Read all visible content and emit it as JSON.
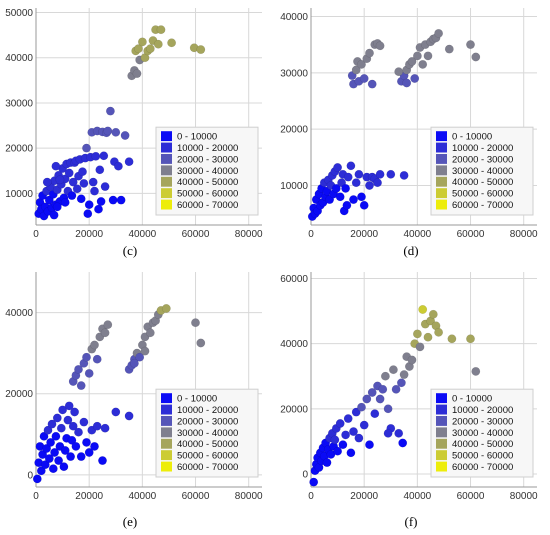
{
  "legend": {
    "entries": [
      {
        "label": "0 - 10000",
        "color": "#0a0af5"
      },
      {
        "label": "10000 - 20000",
        "color": "#2d2dd6"
      },
      {
        "label": "20000 - 30000",
        "color": "#5555b8"
      },
      {
        "label": "30000 - 40000",
        "color": "#7f7f8e"
      },
      {
        "label": "40000 - 50000",
        "color": "#a5a55c"
      },
      {
        "label": "50000 - 60000",
        "color": "#cccc33"
      },
      {
        "label": "60000 - 70000",
        "color": "#eded0a"
      }
    ]
  },
  "chart_data": [
    {
      "type": "scatter",
      "caption": "(c)",
      "xlim": [
        0,
        85000
      ],
      "ylim": [
        3000,
        51000
      ],
      "xticks": [
        0,
        20000,
        40000,
        60000,
        80000
      ],
      "yticks": [
        10000,
        20000,
        30000,
        40000,
        50000
      ],
      "grid": true,
      "legend_position": "bottom-right",
      "points": [
        [
          1000,
          5500
        ],
        [
          1500,
          8000
        ],
        [
          2000,
          6500
        ],
        [
          2500,
          9500
        ],
        [
          3000,
          5000
        ],
        [
          3500,
          7000
        ],
        [
          4000,
          10500
        ],
        [
          4500,
          6000
        ],
        [
          5000,
          8500
        ],
        [
          5500,
          11500
        ],
        [
          6000,
          6800
        ],
        [
          6500,
          9800
        ],
        [
          7000,
          12800
        ],
        [
          7500,
          7500
        ],
        [
          8000,
          10800
        ],
        [
          8500,
          14000
        ],
        [
          9000,
          8200
        ],
        [
          9500,
          12000
        ],
        [
          10000,
          15500
        ],
        [
          10500,
          9000
        ],
        [
          11000,
          13200
        ],
        [
          11500,
          16500
        ],
        [
          12000,
          10500
        ],
        [
          12500,
          14500
        ],
        [
          13000,
          16800
        ],
        [
          13500,
          9500
        ],
        [
          14000,
          12500
        ],
        [
          14500,
          16800
        ],
        [
          15000,
          17200
        ],
        [
          15500,
          11000
        ],
        [
          16000,
          13800
        ],
        [
          16500,
          17500
        ],
        [
          17000,
          8800
        ],
        [
          17500,
          14800
        ],
        [
          18000,
          12200
        ],
        [
          18500,
          17800
        ],
        [
          19000,
          20000
        ],
        [
          19500,
          5500
        ],
        [
          20000,
          7500
        ],
        [
          20500,
          18000
        ],
        [
          21000,
          23500
        ],
        [
          21500,
          12500
        ],
        [
          22000,
          10500
        ],
        [
          22500,
          18200
        ],
        [
          23000,
          23800
        ],
        [
          23500,
          6500
        ],
        [
          24000,
          15200
        ],
        [
          24500,
          8200
        ],
        [
          25000,
          23600
        ],
        [
          25500,
          18300
        ],
        [
          26000,
          11500
        ],
        [
          26500,
          23400
        ],
        [
          27000,
          23800
        ],
        [
          28000,
          28200
        ],
        [
          29000,
          8500
        ],
        [
          29500,
          17000
        ],
        [
          30000,
          23500
        ],
        [
          31000,
          16000
        ],
        [
          32000,
          8500
        ],
        [
          33500,
          22800
        ],
        [
          35000,
          17000
        ],
        [
          36000,
          36000
        ],
        [
          37000,
          37200
        ],
        [
          37500,
          41500
        ],
        [
          38000,
          36500
        ],
        [
          38500,
          42000
        ],
        [
          39000,
          39500
        ],
        [
          40000,
          43500
        ],
        [
          41000,
          40000
        ],
        [
          42000,
          41500
        ],
        [
          43000,
          42000
        ],
        [
          44000,
          43800
        ],
        [
          45000,
          46200
        ],
        [
          46000,
          43000
        ],
        [
          47000,
          46200
        ],
        [
          51000,
          43300
        ],
        [
          59500,
          42200
        ],
        [
          62000,
          41800
        ],
        [
          8000,
          7000
        ],
        [
          9000,
          13000
        ],
        [
          11000,
          8000
        ],
        [
          7500,
          16000
        ],
        [
          4200,
          12500
        ],
        [
          6800,
          5200
        ]
      ]
    },
    {
      "type": "scatter",
      "caption": "(d)",
      "xlim": [
        0,
        85000
      ],
      "ylim": [
        3000,
        41500
      ],
      "xticks": [
        0,
        20000,
        40000,
        60000,
        80000
      ],
      "yticks": [
        10000,
        20000,
        30000,
        40000
      ],
      "grid": true,
      "legend_position": "bottom-right",
      "points": [
        [
          500,
          4500
        ],
        [
          1000,
          6000
        ],
        [
          1500,
          5000
        ],
        [
          2000,
          7500
        ],
        [
          2500,
          5500
        ],
        [
          3000,
          8500
        ],
        [
          3500,
          6500
        ],
        [
          4000,
          9500
        ],
        [
          4500,
          7000
        ],
        [
          5000,
          10500
        ],
        [
          5500,
          8000
        ],
        [
          6000,
          9000
        ],
        [
          6500,
          11000
        ],
        [
          7000,
          7500
        ],
        [
          7500,
          10000
        ],
        [
          8000,
          11800
        ],
        [
          8500,
          8500
        ],
        [
          9000,
          12500
        ],
        [
          9500,
          9500
        ],
        [
          10000,
          13200
        ],
        [
          11000,
          8000
        ],
        [
          11500,
          10500
        ],
        [
          12000,
          12000
        ],
        [
          12500,
          5500
        ],
        [
          13000,
          9500
        ],
        [
          13500,
          6500
        ],
        [
          14000,
          11500
        ],
        [
          15000,
          13500
        ],
        [
          16000,
          7500
        ],
        [
          17000,
          10500
        ],
        [
          18000,
          12000
        ],
        [
          19000,
          8000
        ],
        [
          20000,
          6500
        ],
        [
          21000,
          11500
        ],
        [
          22000,
          10000
        ],
        [
          23000,
          11500
        ],
        [
          24000,
          11200
        ],
        [
          25000,
          10500
        ],
        [
          26000,
          12000
        ],
        [
          30000,
          12000
        ],
        [
          35000,
          11800
        ],
        [
          15500,
          29500
        ],
        [
          16000,
          28000
        ],
        [
          17000,
          30500
        ],
        [
          17500,
          32000
        ],
        [
          18000,
          28500
        ],
        [
          19000,
          31500
        ],
        [
          20000,
          29000
        ],
        [
          21000,
          32500
        ],
        [
          22000,
          33500
        ],
        [
          23000,
          28000
        ],
        [
          24000,
          35000
        ],
        [
          25000,
          35200
        ],
        [
          26000,
          34800
        ],
        [
          34000,
          28500
        ],
        [
          35000,
          29500
        ],
        [
          36000,
          30500
        ],
        [
          37000,
          31500
        ],
        [
          38000,
          32000
        ],
        [
          39000,
          29000
        ],
        [
          40000,
          33000
        ],
        [
          41000,
          34500
        ],
        [
          42000,
          31500
        ],
        [
          43000,
          35000
        ],
        [
          44000,
          33000
        ],
        [
          45000,
          35500
        ],
        [
          46000,
          36000
        ],
        [
          47000,
          36200
        ],
        [
          48000,
          37000
        ],
        [
          52000,
          34200
        ],
        [
          60000,
          35000
        ],
        [
          62000,
          32800
        ],
        [
          36000,
          28200
        ],
        [
          33000,
          30200
        ]
      ]
    },
    {
      "type": "scatter",
      "caption": "(e)",
      "xlim": [
        0,
        85000
      ],
      "ylim": [
        -3000,
        50000
      ],
      "xticks": [
        0,
        20000,
        40000,
        60000,
        80000
      ],
      "yticks": [
        0,
        20000,
        40000
      ],
      "grid": true,
      "legend_position": "bottom-right",
      "points": [
        [
          500,
          -1000
        ],
        [
          1000,
          3000
        ],
        [
          1500,
          7000
        ],
        [
          2000,
          1000
        ],
        [
          2500,
          5000
        ],
        [
          3000,
          9500
        ],
        [
          3500,
          2500
        ],
        [
          4000,
          6500
        ],
        [
          4500,
          11000
        ],
        [
          5000,
          4000
        ],
        [
          5500,
          8000
        ],
        [
          6000,
          12500
        ],
        [
          6500,
          1500
        ],
        [
          7000,
          5500
        ],
        [
          7500,
          9500
        ],
        [
          8000,
          14000
        ],
        [
          8500,
          3500
        ],
        [
          9000,
          7000
        ],
        [
          9500,
          11500
        ],
        [
          10000,
          16000
        ],
        [
          10500,
          2000
        ],
        [
          11000,
          6000
        ],
        [
          11500,
          9000
        ],
        [
          12000,
          13500
        ],
        [
          12500,
          17000
        ],
        [
          13000,
          4500
        ],
        [
          13500,
          8500
        ],
        [
          14000,
          12000
        ],
        [
          14500,
          15500
        ],
        [
          15000,
          7000
        ],
        [
          16000,
          10500
        ],
        [
          17000,
          4500
        ],
        [
          18000,
          13000
        ],
        [
          19000,
          8000
        ],
        [
          20000,
          5500
        ],
        [
          21000,
          11000
        ],
        [
          22000,
          7000
        ],
        [
          23000,
          12000
        ],
        [
          25000,
          3500
        ],
        [
          26000,
          11500
        ],
        [
          30000,
          15500
        ],
        [
          35000,
          14500
        ],
        [
          14000,
          23000
        ],
        [
          15000,
          24500
        ],
        [
          16000,
          26000
        ],
        [
          17000,
          22000
        ],
        [
          18000,
          27500
        ],
        [
          19000,
          29000
        ],
        [
          20000,
          25000
        ],
        [
          21000,
          31000
        ],
        [
          22000,
          32000
        ],
        [
          23000,
          28500
        ],
        [
          24000,
          34000
        ],
        [
          25000,
          36000
        ],
        [
          26000,
          35000
        ],
        [
          27000,
          37000
        ],
        [
          35000,
          26000
        ],
        [
          36000,
          27000
        ],
        [
          37000,
          28500
        ],
        [
          38000,
          30000
        ],
        [
          39000,
          29000
        ],
        [
          40000,
          32000
        ],
        [
          41000,
          34000
        ],
        [
          42000,
          36500
        ],
        [
          43000,
          35000
        ],
        [
          44000,
          37500
        ],
        [
          45000,
          38000
        ],
        [
          46000,
          39500
        ],
        [
          47000,
          40500
        ],
        [
          49000,
          41000
        ],
        [
          60000,
          37500
        ],
        [
          62000,
          32500
        ],
        [
          37000,
          27500
        ],
        [
          41000,
          30500
        ]
      ]
    },
    {
      "type": "scatter",
      "caption": "(f)",
      "xlim": [
        0,
        85000
      ],
      "ylim": [
        -4000,
        62000
      ],
      "xticks": [
        0,
        20000,
        40000,
        60000,
        80000
      ],
      "yticks": [
        0,
        20000,
        40000,
        60000
      ],
      "grid": true,
      "legend_position": "bottom-right",
      "points": [
        [
          1000,
          -2500
        ],
        [
          1500,
          1000
        ],
        [
          2000,
          3000
        ],
        [
          2500,
          5000
        ],
        [
          3000,
          2000
        ],
        [
          3500,
          6500
        ],
        [
          4000,
          4000
        ],
        [
          4500,
          8000
        ],
        [
          5000,
          5500
        ],
        [
          5500,
          9500
        ],
        [
          6000,
          3500
        ],
        [
          6500,
          7500
        ],
        [
          7000,
          11000
        ],
        [
          7500,
          6000
        ],
        [
          8000,
          12500
        ],
        [
          8500,
          8500
        ],
        [
          9000,
          10500
        ],
        [
          9500,
          14000
        ],
        [
          10000,
          7000
        ],
        [
          11000,
          15500
        ],
        [
          12000,
          9000
        ],
        [
          13000,
          12000
        ],
        [
          14000,
          17000
        ],
        [
          15000,
          6500
        ],
        [
          16000,
          13000
        ],
        [
          17000,
          19000
        ],
        [
          18000,
          11000
        ],
        [
          19000,
          20500
        ],
        [
          20000,
          15000
        ],
        [
          21000,
          23000
        ],
        [
          22000,
          9000
        ],
        [
          23000,
          25000
        ],
        [
          24000,
          18500
        ],
        [
          25000,
          27000
        ],
        [
          26000,
          23000
        ],
        [
          27000,
          26000
        ],
        [
          28000,
          30000
        ],
        [
          29000,
          20000
        ],
        [
          30000,
          14000
        ],
        [
          31000,
          32000
        ],
        [
          32000,
          26000
        ],
        [
          33000,
          12500
        ],
        [
          34000,
          28000
        ],
        [
          35000,
          30500
        ],
        [
          36000,
          36000
        ],
        [
          37000,
          33000
        ],
        [
          38000,
          35000
        ],
        [
          39000,
          40000
        ],
        [
          40000,
          43000
        ],
        [
          41000,
          39000
        ],
        [
          42000,
          50500
        ],
        [
          43000,
          46000
        ],
        [
          44000,
          42000
        ],
        [
          45000,
          47000
        ],
        [
          46000,
          49000
        ],
        [
          47000,
          45500
        ],
        [
          48000,
          43500
        ],
        [
          53000,
          41500
        ],
        [
          60000,
          41500
        ],
        [
          62000,
          31500
        ],
        [
          34500,
          9500
        ],
        [
          29000,
          12500
        ]
      ]
    }
  ],
  "panels": {
    "c": {
      "caption": "(c)"
    },
    "d": {
      "caption": "(d)"
    },
    "e": {
      "caption": "(e)"
    },
    "f": {
      "caption": "(f)"
    }
  }
}
